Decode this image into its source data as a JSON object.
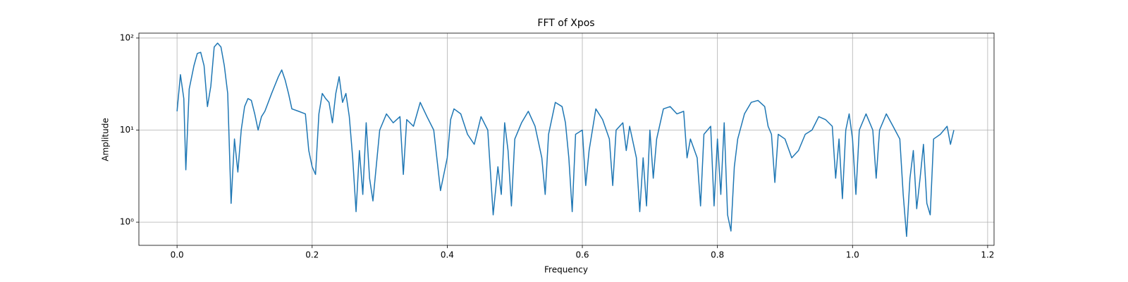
{
  "chart_data": {
    "type": "line",
    "title": "FFT of Xpos",
    "xlabel": "Frequency",
    "ylabel": "Amplitude",
    "yscale": "log",
    "grid": true,
    "xlim": [
      -0.0565,
      1.2095
    ],
    "ylim": [
      0.56,
      113
    ],
    "xticks": [
      {
        "value": 0,
        "label": "0.0"
      },
      0.2,
      0.4,
      0.6,
      0.8,
      {
        "value": 1,
        "label": "1.0"
      },
      1.2
    ],
    "yticks": [
      {
        "value": 1,
        "label": "10⁰"
      },
      {
        "value": 10,
        "label": "10¹"
      },
      {
        "value": 100,
        "label": "10²"
      }
    ],
    "series": [
      {
        "name": "Xpos",
        "color": "#1f77b4",
        "x": [
          0,
          0.005,
          0.01,
          0.013,
          0.018,
          0.025,
          0.03,
          0.035,
          0.04,
          0.045,
          0.05,
          0.055,
          0.06,
          0.065,
          0.07,
          0.075,
          0.08,
          0.085,
          0.09,
          0.095,
          0.1,
          0.105,
          0.11,
          0.115,
          0.12,
          0.125,
          0.13,
          0.14,
          0.15,
          0.155,
          0.16,
          0.165,
          0.17,
          0.18,
          0.19,
          0.195,
          0.2,
          0.205,
          0.21,
          0.215,
          0.22,
          0.225,
          0.23,
          0.235,
          0.24,
          0.245,
          0.25,
          0.255,
          0.26,
          0.265,
          0.27,
          0.275,
          0.28,
          0.285,
          0.29,
          0.3,
          0.31,
          0.32,
          0.33,
          0.335,
          0.34,
          0.35,
          0.36,
          0.37,
          0.38,
          0.39,
          0.4,
          0.405,
          0.41,
          0.42,
          0.43,
          0.44,
          0.45,
          0.46,
          0.468,
          0.475,
          0.48,
          0.485,
          0.49,
          0.495,
          0.5,
          0.51,
          0.52,
          0.53,
          0.54,
          0.545,
          0.55,
          0.56,
          0.57,
          0.575,
          0.58,
          0.585,
          0.59,
          0.6,
          0.605,
          0.61,
          0.62,
          0.63,
          0.64,
          0.645,
          0.65,
          0.66,
          0.665,
          0.67,
          0.68,
          0.685,
          0.69,
          0.695,
          0.7,
          0.705,
          0.71,
          0.72,
          0.73,
          0.74,
          0.75,
          0.755,
          0.76,
          0.77,
          0.775,
          0.78,
          0.79,
          0.795,
          0.8,
          0.805,
          0.81,
          0.815,
          0.82,
          0.825,
          0.83,
          0.84,
          0.85,
          0.86,
          0.87,
          0.875,
          0.88,
          0.885,
          0.89,
          0.9,
          0.91,
          0.92,
          0.93,
          0.94,
          0.95,
          0.96,
          0.97,
          0.975,
          0.98,
          0.985,
          0.99,
          0.995,
          1,
          1.005,
          1.01,
          1.02,
          1.03,
          1.035,
          1.04,
          1.05,
          1.06,
          1.07,
          1.075,
          1.08,
          1.085,
          1.09,
          1.095,
          1.1,
          1.105,
          1.11,
          1.115,
          1.12,
          1.13,
          1.14,
          1.145,
          1.15
        ],
        "values": [
          16,
          40,
          22,
          3.7,
          28,
          50,
          68,
          70,
          50,
          18,
          30,
          80,
          88,
          80,
          50,
          25,
          1.6,
          8,
          3.5,
          10,
          18,
          22,
          21,
          15,
          10,
          14,
          16,
          25,
          38,
          45,
          35,
          25,
          17,
          16,
          15,
          6,
          4,
          3.3,
          15,
          25,
          22,
          20,
          12,
          25,
          38,
          20,
          25,
          14,
          5,
          1.3,
          6,
          2,
          12,
          3,
          1.7,
          10,
          15,
          12,
          14,
          3.3,
          13,
          11,
          20,
          14,
          10,
          2.2,
          5,
          13,
          17,
          15,
          9,
          7,
          14,
          10,
          1.2,
          4,
          2,
          12,
          6,
          1.5,
          8,
          12,
          16,
          11,
          5,
          2,
          9,
          20,
          18,
          12,
          5,
          1.3,
          9,
          10,
          2.5,
          6,
          17,
          13,
          8,
          2.5,
          10,
          12,
          6,
          11,
          5,
          1.3,
          5,
          1.5,
          10,
          3,
          8,
          17,
          18,
          15,
          16,
          5,
          8,
          5,
          1.5,
          9,
          11,
          1.5,
          8,
          2,
          12,
          1.2,
          0.8,
          4,
          8,
          15,
          20,
          21,
          18,
          11,
          9,
          2.7,
          9,
          8,
          5,
          6,
          9,
          10,
          14,
          13,
          11,
          3,
          8,
          1.8,
          10,
          15,
          8,
          2,
          10,
          15,
          10,
          3,
          10,
          15,
          11,
          8,
          2,
          0.7,
          3,
          6,
          1.4,
          3,
          7,
          1.6,
          1.2,
          8,
          9,
          11,
          7,
          10
        ]
      }
    ]
  }
}
